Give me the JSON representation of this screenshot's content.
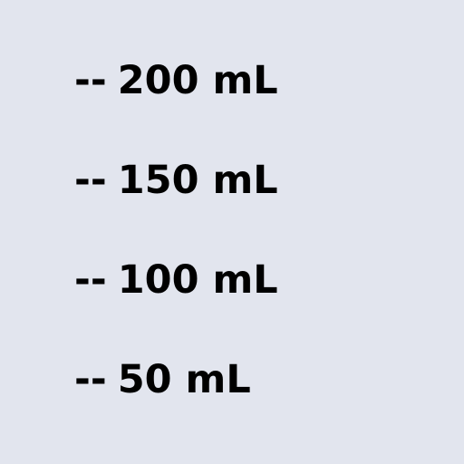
{
  "background_color": "#e2e5ee",
  "text_color": "#000000",
  "marks": [
    {
      "tick": "--",
      "label": "200 mL"
    },
    {
      "tick": "--",
      "label": "150 mL"
    },
    {
      "tick": "--",
      "label": "100 mL"
    },
    {
      "tick": "--",
      "label": "50 mL"
    }
  ]
}
